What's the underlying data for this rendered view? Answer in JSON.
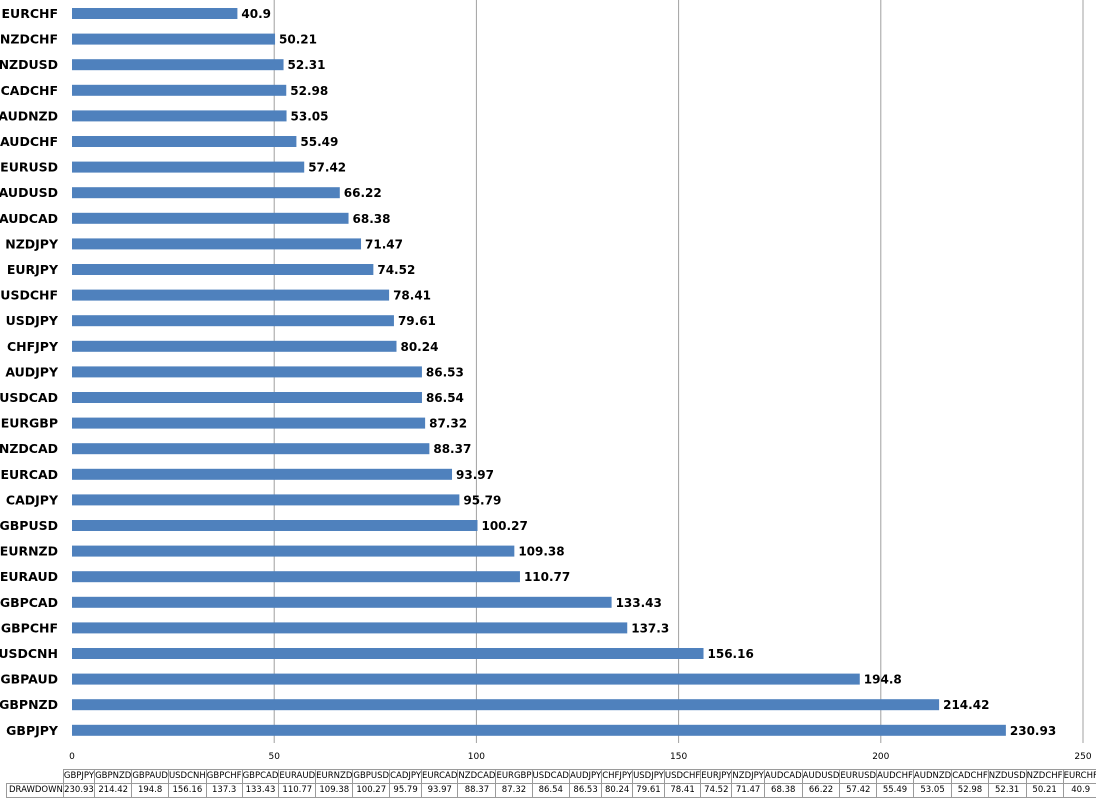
{
  "chart_data": {
    "type": "bar",
    "orientation": "horizontal",
    "categories": [
      "GBPJPY",
      "GBPNZD",
      "GBPAUD",
      "USDCNH",
      "GBPCHF",
      "GBPCAD",
      "EURAUD",
      "EURNZD",
      "GBPUSD",
      "CADJPY",
      "EURCAD",
      "NZDCAD",
      "EURGBP",
      "USDCAD",
      "AUDJPY",
      "CHFJPY",
      "USDJPY",
      "USDCHF",
      "EURJPY",
      "NZDJPY",
      "AUDCAD",
      "AUDUSD",
      "EURUSD",
      "AUDCHF",
      "AUDNZD",
      "CADCHF",
      "NZDUSD",
      "NZDCHF",
      "EURCHF"
    ],
    "series": [
      {
        "name": "DRAWDOWN",
        "values": [
          230.93,
          214.42,
          194.8,
          156.16,
          137.3,
          133.43,
          110.77,
          109.38,
          100.27,
          95.79,
          93.97,
          88.37,
          87.32,
          86.54,
          86.53,
          80.24,
          79.61,
          78.41,
          74.52,
          71.47,
          68.38,
          66.22,
          57.42,
          55.49,
          53.05,
          52.98,
          52.31,
          50.21,
          40.9
        ],
        "color": "#4f81bd"
      }
    ],
    "xlim": [
      0,
      250
    ],
    "xticks": [
      "0",
      "50",
      "100",
      "150",
      "200",
      "250"
    ],
    "grid": "vertical",
    "data_labels": true,
    "data_table": true,
    "title": "",
    "xlabel": "",
    "ylabel": ""
  }
}
